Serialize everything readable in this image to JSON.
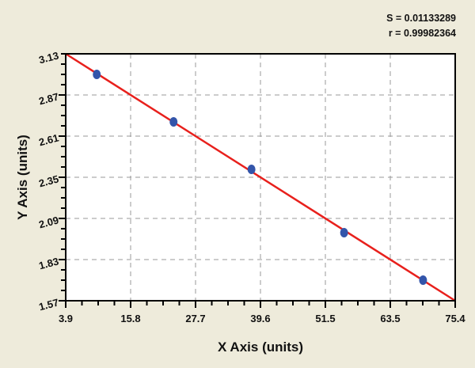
{
  "chart_data": {
    "type": "scatter",
    "title": "",
    "xlabel": "X Axis (units)",
    "ylabel": "Y Axis (units)",
    "xlim": [
      3.9,
      75.4
    ],
    "ylim": [
      1.57,
      3.13
    ],
    "xticks": [
      "3.9",
      "15.8",
      "27.7",
      "39.6",
      "51.5",
      "63.5",
      "75.4"
    ],
    "yticks": [
      "1.57",
      "1.83",
      "2.09",
      "2.35",
      "2.61",
      "2.87",
      "3.13"
    ],
    "grid": true,
    "points": {
      "x": [
        9.6,
        23.7,
        38.0,
        55.0,
        69.5
      ],
      "y": [
        3.0,
        2.7,
        2.4,
        2.0,
        1.7
      ]
    },
    "fit_line": {
      "x": [
        3.9,
        75.4
      ],
      "y": [
        3.13,
        1.57
      ]
    },
    "annotations": [
      "S = 0.01133289",
      "r = 0.99982364"
    ],
    "colors": {
      "points": "#3355aa",
      "line": "#e8201c",
      "background": "#eeebdb",
      "plot": "#ffffff",
      "grid": "#999999"
    }
  }
}
